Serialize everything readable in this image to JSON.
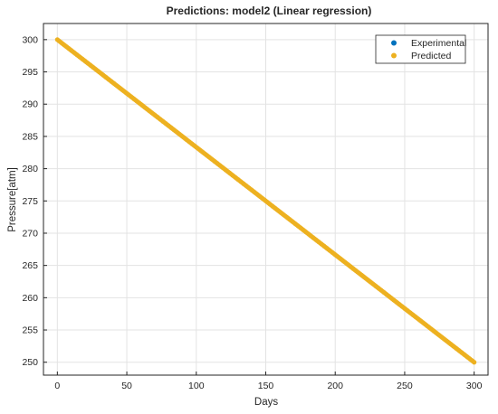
{
  "chart_data": {
    "type": "scatter",
    "title": "Predictions: model2 (Linear regression)",
    "xlabel": "Days",
    "ylabel": "Pressure[atm]",
    "xlim": [
      -10,
      310
    ],
    "ylim": [
      248,
      302.5
    ],
    "xticks": [
      0,
      50,
      100,
      150,
      200,
      250,
      300
    ],
    "yticks": [
      250,
      255,
      260,
      265,
      270,
      275,
      280,
      285,
      290,
      295,
      300
    ],
    "grid": true,
    "legend_position": "top-right",
    "series": [
      {
        "name": "Experimental",
        "color": "#0072bd",
        "marker": "filled-circle",
        "x": [],
        "y": []
      },
      {
        "name": "Predicted",
        "color": "#edb120",
        "marker": "filled-circle",
        "line": {
          "x": [
            0,
            300
          ],
          "y": [
            300,
            250
          ]
        },
        "step": 1
      }
    ]
  }
}
